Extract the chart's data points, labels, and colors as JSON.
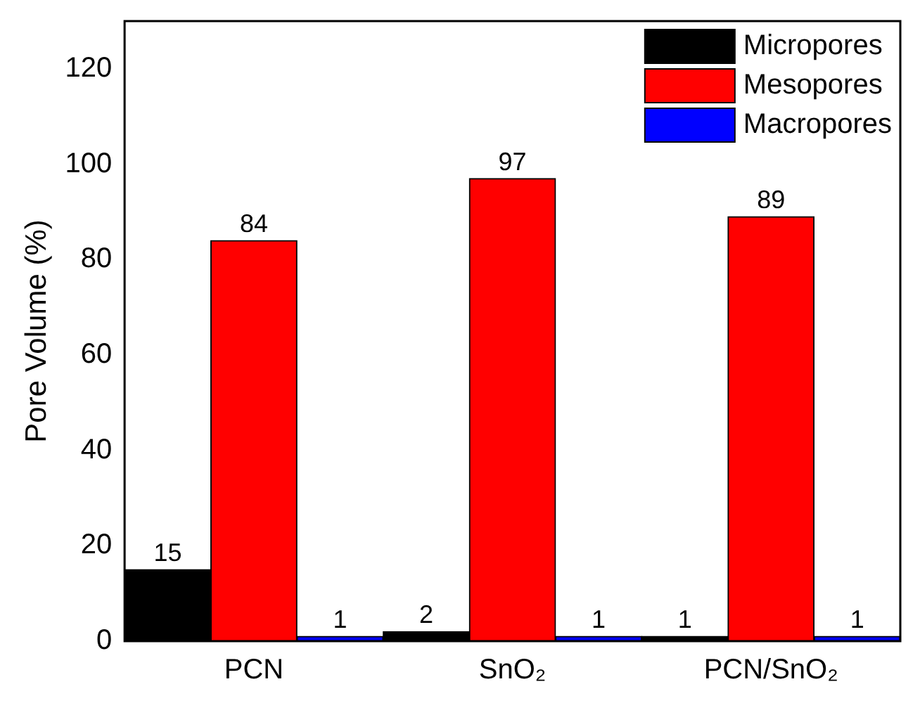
{
  "chart_data": {
    "type": "bar",
    "ylabel": "Pore Volume (%)",
    "categories": [
      "PCN",
      "SnO₂",
      "PCN/SnO₂"
    ],
    "series": [
      {
        "name": "Micropores",
        "color": "#000000",
        "values": [
          15,
          2,
          1
        ]
      },
      {
        "name": "Mesopores",
        "color": "#ff0000",
        "values": [
          84,
          97,
          89
        ]
      },
      {
        "name": "Macropores",
        "color": "#0000ff",
        "values": [
          1,
          1,
          1
        ]
      }
    ],
    "ylim": [
      0,
      130
    ],
    "yticks": [
      0,
      20,
      40,
      60,
      80,
      100,
      120
    ],
    "data_labels": true,
    "legend": "top right",
    "grid": false
  }
}
